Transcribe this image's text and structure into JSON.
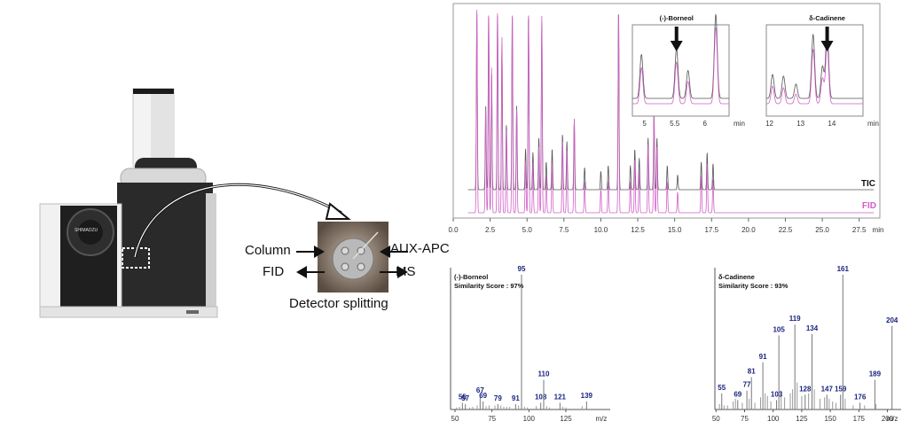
{
  "setup": {
    "brand": "SHIMADZU",
    "labels": {
      "column": "Column",
      "aux_apc": "AUX-APC",
      "fid": "FID",
      "ms": "MS",
      "caption": "Detector splitting"
    }
  },
  "colors": {
    "tic": "#555555",
    "fid": "#d060c8",
    "ms_peak": "#1a237e",
    "arrow": "#111111"
  },
  "chart_data": [
    {
      "type": "line",
      "title": "",
      "xlabel": "min",
      "xlim": [
        0,
        28.9
      ],
      "xticks": [
        0.0,
        2.5,
        5.0,
        7.5,
        10.0,
        12.5,
        15.0,
        17.5,
        20.0,
        22.5,
        25.0,
        27.5
      ],
      "xtick_labels": [
        "0.0",
        "2.5",
        "5.0",
        "7.5",
        "10.0",
        "12.5",
        "15.0",
        "17.5",
        "20.0",
        "22.5",
        "25.0",
        "27.5"
      ],
      "legend": [
        "TIC",
        "FID"
      ],
      "series": [
        {
          "name": "TIC",
          "peaks": [
            [
              1.6,
              0.95
            ],
            [
              2.2,
              0.45
            ],
            [
              2.4,
              0.95
            ],
            [
              2.6,
              0.62
            ],
            [
              3.0,
              0.95
            ],
            [
              3.3,
              0.78
            ],
            [
              3.6,
              0.35
            ],
            [
              4.0,
              0.95
            ],
            [
              4.3,
              0.45
            ],
            [
              4.9,
              0.22
            ],
            [
              5.1,
              0.95
            ],
            [
              5.4,
              0.2
            ],
            [
              5.8,
              0.28
            ],
            [
              6.0,
              0.9
            ],
            [
              6.3,
              0.15
            ],
            [
              6.7,
              0.22
            ],
            [
              7.4,
              0.3
            ],
            [
              7.7,
              0.26
            ],
            [
              8.2,
              0.38
            ],
            [
              8.9,
              0.12
            ],
            [
              10.0,
              0.1
            ],
            [
              10.5,
              0.13
            ],
            [
              11.2,
              0.97
            ],
            [
              12.0,
              0.13
            ],
            [
              12.3,
              0.22
            ],
            [
              12.6,
              0.17
            ],
            [
              13.2,
              0.28
            ],
            [
              13.6,
              0.42
            ],
            [
              13.8,
              0.28
            ],
            [
              14.5,
              0.13
            ],
            [
              15.2,
              0.08
            ],
            [
              16.8,
              0.15
            ],
            [
              17.2,
              0.2
            ],
            [
              17.6,
              0.14
            ]
          ]
        },
        {
          "name": "FID",
          "peaks": [
            [
              1.6,
              0.98
            ],
            [
              2.2,
              0.5
            ],
            [
              2.4,
              0.98
            ],
            [
              2.6,
              0.7
            ],
            [
              3.0,
              0.98
            ],
            [
              3.3,
              0.85
            ],
            [
              3.6,
              0.4
            ],
            [
              4.0,
              0.98
            ],
            [
              4.3,
              0.5
            ],
            [
              4.9,
              0.25
            ],
            [
              5.1,
              0.98
            ],
            [
              5.4,
              0.24
            ],
            [
              5.8,
              0.32
            ],
            [
              6.0,
              0.95
            ],
            [
              6.3,
              0.18
            ],
            [
              6.7,
              0.24
            ],
            [
              7.4,
              0.35
            ],
            [
              7.7,
              0.3
            ],
            [
              8.2,
              0.45
            ],
            [
              8.9,
              0.15
            ],
            [
              10.0,
              0.12
            ],
            [
              10.5,
              0.15
            ],
            [
              11.2,
              0.98
            ],
            [
              12.0,
              0.15
            ],
            [
              12.3,
              0.26
            ],
            [
              12.6,
              0.2
            ],
            [
              13.2,
              0.33
            ],
            [
              13.6,
              0.48
            ],
            [
              13.8,
              0.32
            ],
            [
              14.5,
              0.15
            ],
            [
              15.2,
              0.1
            ],
            [
              16.8,
              0.18
            ],
            [
              17.2,
              0.24
            ],
            [
              17.6,
              0.16
            ]
          ]
        }
      ]
    },
    {
      "type": "line",
      "title": "(-)-Borneol",
      "xlabel": "min",
      "xlim": [
        4.8,
        6.4
      ],
      "xticks": [
        5,
        5.5,
        6
      ],
      "xtick_labels": [
        "5",
        "5.5",
        "6"
      ],
      "marker_x": 5.53,
      "series": [
        {
          "name": "TIC",
          "peaks": [
            [
              4.95,
              0.55
            ],
            [
              5.53,
              0.62
            ],
            [
              5.72,
              0.35
            ],
            [
              6.18,
              1.05
            ]
          ]
        },
        {
          "name": "FID",
          "peaks": [
            [
              4.95,
              0.45
            ],
            [
              5.53,
              0.52
            ],
            [
              5.72,
              0.28
            ],
            [
              6.18,
              0.95
            ]
          ]
        }
      ]
    },
    {
      "type": "line",
      "title": "δ-Cadinene",
      "xlabel": "min",
      "xlim": [
        11.9,
        15.0
      ],
      "xticks": [
        12,
        13,
        14
      ],
      "xtick_labels": [
        "12",
        "13",
        "14"
      ],
      "marker_x": 13.85,
      "series": [
        {
          "name": "TIC",
          "peaks": [
            [
              12.1,
              0.3
            ],
            [
              12.45,
              0.28
            ],
            [
              12.85,
              0.18
            ],
            [
              13.4,
              0.8
            ],
            [
              13.7,
              0.4
            ],
            [
              13.85,
              0.85
            ]
          ]
        },
        {
          "name": "FID",
          "peaks": [
            [
              12.1,
              0.22
            ],
            [
              12.45,
              0.2
            ],
            [
              12.85,
              0.12
            ],
            [
              13.4,
              0.68
            ],
            [
              13.7,
              0.32
            ],
            [
              13.85,
              0.74
            ]
          ]
        }
      ]
    },
    {
      "type": "bar",
      "title": "(-)-Borneol",
      "subtitle": "Similarity Score : 97%",
      "xlabel": "m/z",
      "xlim": [
        47,
        155
      ],
      "xticks": [
        50,
        75,
        100,
        125
      ],
      "xtick_labels": [
        "50",
        "75",
        "100",
        "125"
      ],
      "ylim": [
        0,
        100
      ],
      "peaks": [
        [
          55,
          5
        ],
        [
          57,
          4
        ],
        [
          67,
          10
        ],
        [
          69,
          6
        ],
        [
          79,
          4
        ],
        [
          91,
          4
        ],
        [
          95,
          100
        ],
        [
          108,
          5
        ],
        [
          110,
          22
        ],
        [
          121,
          5
        ],
        [
          139,
          6
        ]
      ],
      "minor_peaks": [
        [
          51,
          1.5
        ],
        [
          53,
          2
        ],
        [
          60,
          1.5
        ],
        [
          62,
          2
        ],
        [
          65,
          3
        ],
        [
          71,
          2.5
        ],
        [
          73,
          3
        ],
        [
          77,
          3
        ],
        [
          81,
          3
        ],
        [
          83,
          2
        ],
        [
          85,
          2
        ],
        [
          87,
          2
        ],
        [
          93,
          3
        ],
        [
          97,
          2
        ],
        [
          99,
          1.5
        ],
        [
          105,
          2.5
        ],
        [
          112,
          2.5
        ],
        [
          114,
          1.5
        ],
        [
          123,
          2
        ],
        [
          125,
          1.5
        ],
        [
          136,
          2.5
        ]
      ],
      "peak_labels": [
        "55",
        "57",
        "67",
        "69",
        "79",
        "91",
        "95",
        "108",
        "110",
        "121",
        "139"
      ]
    },
    {
      "type": "bar",
      "title": "δ-Cadinene",
      "subtitle": "Similarity Score : 93%",
      "xlabel": "m/z",
      "xlim": [
        49,
        212
      ],
      "xticks": [
        50,
        75,
        100,
        125,
        150,
        175,
        200
      ],
      "xtick_labels": [
        "50",
        "75",
        "100",
        "125",
        "150",
        "175",
        "200"
      ],
      "ylim": [
        0,
        100
      ],
      "peaks": [
        [
          55,
          12
        ],
        [
          69,
          7
        ],
        [
          77,
          14
        ],
        [
          81,
          24
        ],
        [
          91,
          35
        ],
        [
          103,
          7
        ],
        [
          105,
          55
        ],
        [
          119,
          63
        ],
        [
          128,
          11
        ],
        [
          134,
          56
        ],
        [
          147,
          11
        ],
        [
          159,
          11
        ],
        [
          161,
          100
        ],
        [
          176,
          5
        ],
        [
          189,
          22
        ],
        [
          204,
          62
        ]
      ],
      "minor_peaks": [
        [
          53,
          4
        ],
        [
          57,
          3
        ],
        [
          60,
          3
        ],
        [
          65,
          6
        ],
        [
          67,
          8
        ],
        [
          73,
          5
        ],
        [
          79,
          8
        ],
        [
          84,
          5
        ],
        [
          89,
          9
        ],
        [
          93,
          12
        ],
        [
          95,
          10
        ],
        [
          98,
          6
        ],
        [
          107,
          14
        ],
        [
          110,
          9
        ],
        [
          115,
          12
        ],
        [
          117,
          15
        ],
        [
          121,
          20
        ],
        [
          125,
          10
        ],
        [
          131,
          12
        ],
        [
          136,
          15
        ],
        [
          141,
          8
        ],
        [
          145,
          9
        ],
        [
          149,
          8
        ],
        [
          152,
          6
        ],
        [
          155,
          5
        ],
        [
          163,
          8
        ],
        [
          170,
          3
        ],
        [
          180,
          3
        ],
        [
          190,
          4
        ]
      ],
      "peak_labels": [
        "55",
        "69",
        "77",
        "81",
        "91",
        "103",
        "105",
        "119",
        "128",
        "134",
        "147",
        "159",
        "161",
        "176",
        "189",
        "204"
      ]
    }
  ]
}
